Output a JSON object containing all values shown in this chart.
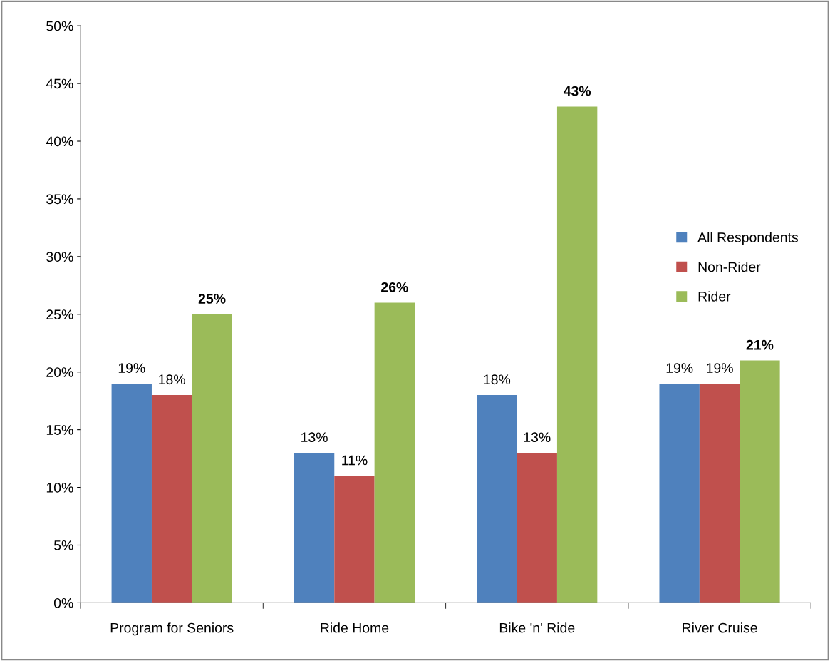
{
  "chart_data": {
    "type": "bar",
    "categories": [
      "Program for Seniors",
      "Ride Home",
      "Bike 'n' Ride",
      "River Cruise"
    ],
    "series": [
      {
        "name": "All Respondents",
        "color": "#4f81bd",
        "values": [
          19,
          13,
          18,
          19
        ],
        "value_labels": [
          "19%",
          "13%",
          "18%",
          "19%"
        ]
      },
      {
        "name": "Non-Rider",
        "color": "#c0504d",
        "values": [
          18,
          11,
          13,
          19
        ],
        "value_labels": [
          "18%",
          "11%",
          "13%",
          "19%"
        ]
      },
      {
        "name": "Rider",
        "color": "#9bbb59",
        "values": [
          25,
          26,
          43,
          21
        ],
        "value_labels": [
          "25%",
          "26%",
          "43%",
          "21%"
        ]
      }
    ],
    "ylim": [
      0,
      50
    ],
    "yticks": [
      {
        "value": 0,
        "label": "0%"
      },
      {
        "value": 5,
        "label": "5%"
      },
      {
        "value": 10,
        "label": "10%"
      },
      {
        "value": 15,
        "label": "15%"
      },
      {
        "value": 20,
        "label": "20%"
      },
      {
        "value": 25,
        "label": "25%"
      },
      {
        "value": 30,
        "label": "30%"
      },
      {
        "value": 35,
        "label": "35%"
      },
      {
        "value": 40,
        "label": "40%"
      },
      {
        "value": 45,
        "label": "45%"
      },
      {
        "value": 50,
        "label": "50%"
      }
    ],
    "grid": false,
    "legend": "right"
  }
}
